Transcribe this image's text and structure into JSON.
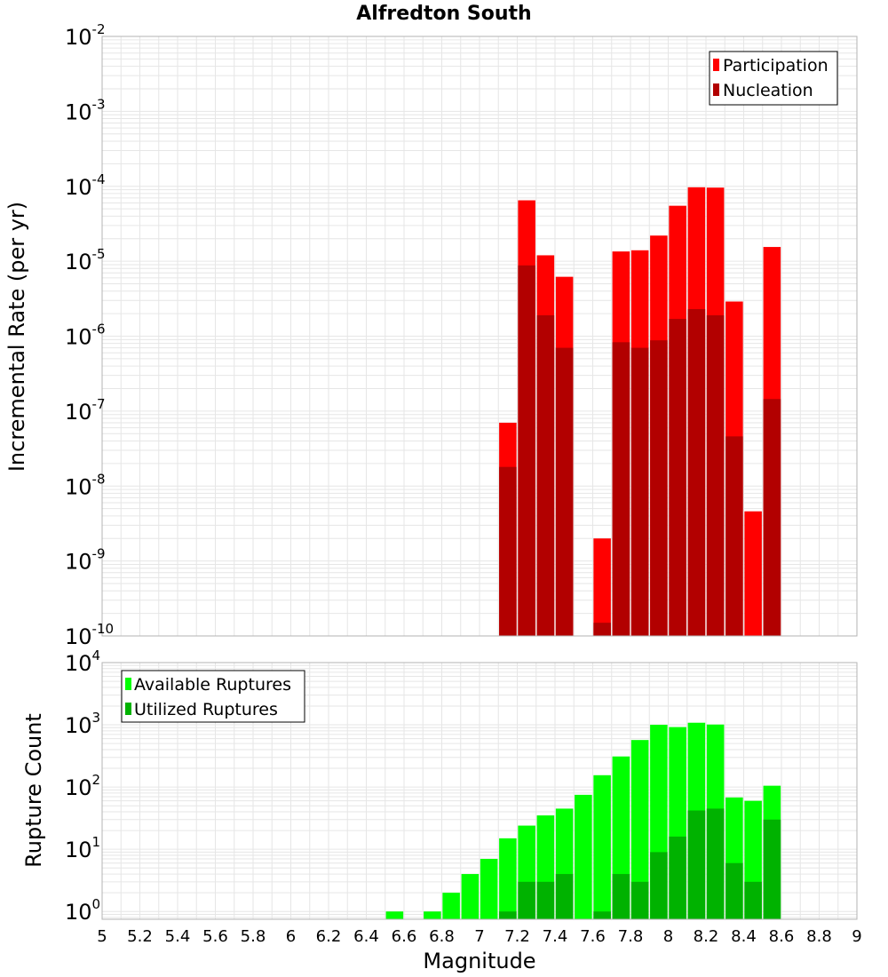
{
  "colors": {
    "participation": "#ff0000",
    "nucleation": "#b20000",
    "available": "#00ff00",
    "utilized": "#00b200",
    "grid": "#e6e6e6",
    "frame": "#b3b3b3"
  },
  "chart_data": [
    {
      "type": "bar",
      "title": "Alfredton South",
      "xlabel": "Magnitude",
      "ylabel": "Incremental Rate (per yr)",
      "yscale": "log",
      "ylim": [
        1e-10,
        0.01
      ],
      "xlim": [
        5,
        9
      ],
      "grid": true,
      "legend_position": "top-right",
      "x": [
        7.15,
        7.25,
        7.35,
        7.45,
        7.65,
        7.75,
        7.85,
        7.95,
        8.05,
        8.15,
        8.25,
        8.35,
        8.45,
        8.55
      ],
      "series": [
        {
          "name": "Participation",
          "values": [
            7e-08,
            6.5e-05,
            1.2e-05,
            6.2e-06,
            2e-09,
            1.35e-05,
            1.4e-05,
            2.2e-05,
            5.5e-05,
            9.7e-05,
            9.6e-05,
            2.9e-06,
            4.6e-09,
            1.55e-05
          ]
        },
        {
          "name": "Nucleation",
          "values": [
            1.8e-08,
            8.8e-06,
            1.9e-06,
            7e-07,
            1.5e-10,
            8.3e-07,
            7e-07,
            8.8e-07,
            1.7e-06,
            2.3e-06,
            1.9e-06,
            4.6e-08,
            0,
            1.45e-07
          ]
        }
      ]
    },
    {
      "type": "bar",
      "xlabel": "Magnitude",
      "ylabel": "Rupture Count",
      "yscale": "log",
      "ylim": [
        0.75,
        10000
      ],
      "xlim": [
        5,
        9
      ],
      "grid": true,
      "legend_position": "top-left",
      "x": [
        6.55,
        6.75,
        6.85,
        6.95,
        7.05,
        7.15,
        7.25,
        7.35,
        7.45,
        7.55,
        7.65,
        7.75,
        7.85,
        7.95,
        8.05,
        8.15,
        8.25,
        8.35,
        8.45,
        8.55
      ],
      "series": [
        {
          "name": "Available Ruptures",
          "values": [
            1,
            1,
            2,
            4,
            7,
            15,
            24,
            35,
            45,
            75,
            155,
            310,
            570,
            1000,
            920,
            1080,
            1010,
            68,
            60,
            105
          ]
        },
        {
          "name": "Utilized Ruptures",
          "values": [
            0,
            0,
            0,
            0,
            0,
            1,
            3,
            3,
            4,
            0,
            1,
            4,
            3,
            9,
            16,
            42,
            45,
            6,
            3,
            30
          ]
        }
      ]
    }
  ],
  "x_ticks": [
    "5",
    "5.2",
    "5.4",
    "5.6",
    "5.8",
    "6",
    "6.2",
    "6.4",
    "6.6",
    "6.8",
    "7",
    "7.2",
    "7.4",
    "7.6",
    "7.8",
    "8",
    "8.2",
    "8.4",
    "8.6",
    "8.8",
    "9"
  ],
  "top_y_ticks": [
    {
      "base": "10",
      "exp": "-2",
      "value": 0.01
    },
    {
      "base": "10",
      "exp": "-3",
      "value": 0.001
    },
    {
      "base": "10",
      "exp": "-4",
      "value": 0.0001
    },
    {
      "base": "10",
      "exp": "-5",
      "value": 1e-05
    },
    {
      "base": "10",
      "exp": "-6",
      "value": 1e-06
    },
    {
      "base": "10",
      "exp": "-7",
      "value": 1e-07
    },
    {
      "base": "10",
      "exp": "-8",
      "value": 1e-08
    },
    {
      "base": "10",
      "exp": "-9",
      "value": 1e-09
    },
    {
      "base": "10",
      "exp": "-10",
      "value": 1e-10
    }
  ],
  "bottom_y_ticks": [
    {
      "base": "10",
      "exp": "4",
      "value": 10000
    },
    {
      "base": "10",
      "exp": "3",
      "value": 1000
    },
    {
      "base": "10",
      "exp": "2",
      "value": 100
    },
    {
      "base": "10",
      "exp": "1",
      "value": 10
    },
    {
      "base": "10",
      "exp": "0",
      "value": 1
    }
  ]
}
